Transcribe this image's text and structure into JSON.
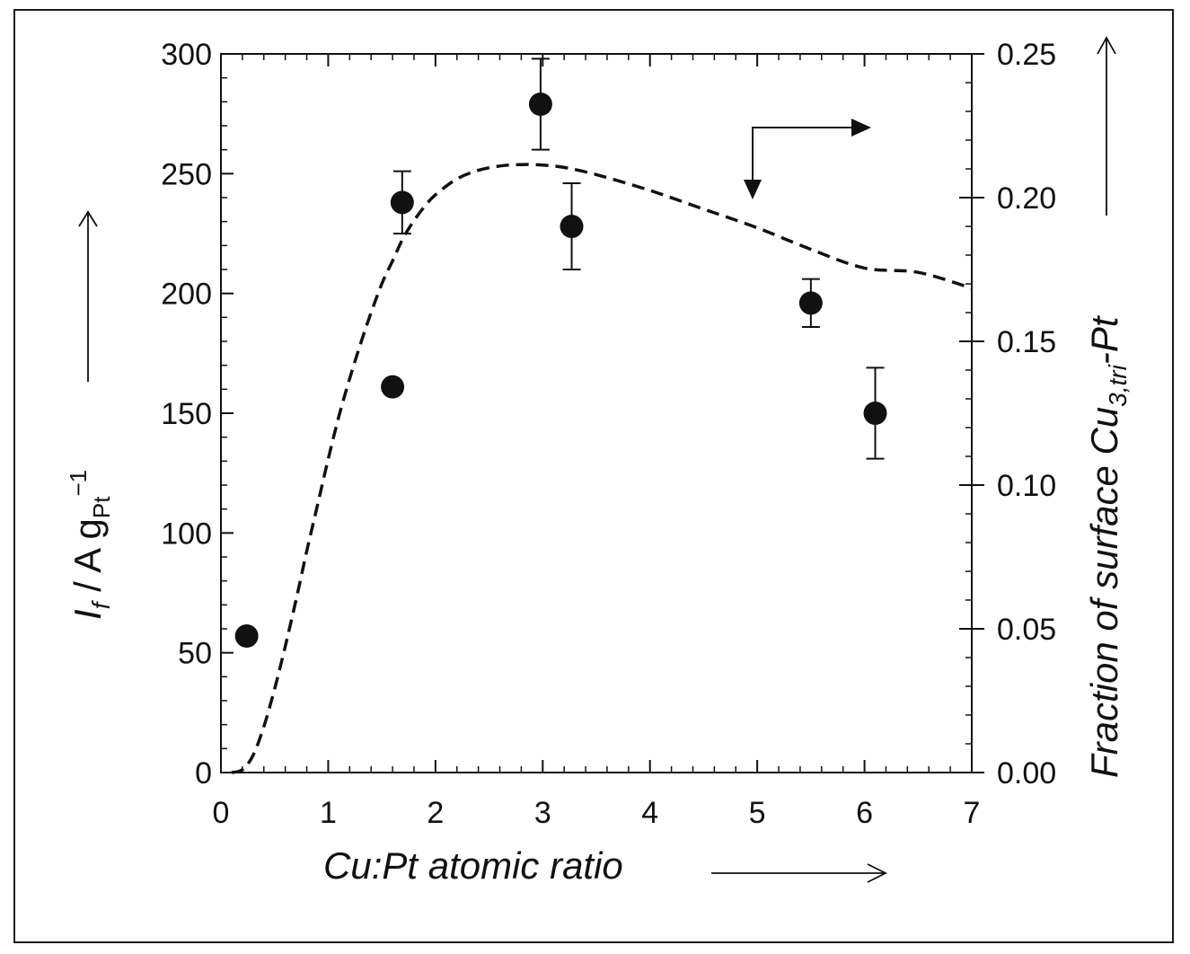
{
  "chart_data": {
    "type": "scatter",
    "x_axis": {
      "label": "Cu:Pt atomic ratio",
      "range": [
        0,
        7
      ],
      "ticks": [
        "0",
        "1",
        "2",
        "3",
        "4",
        "5",
        "6",
        "7"
      ]
    },
    "y_left_axis": {
      "label_main": "I",
      "label_sub_f": "f",
      "label_rest": " / A g",
      "label_sub_pt": "Pt",
      "label_sup": "−1",
      "range": [
        0,
        300
      ],
      "ticks": [
        "0",
        "50",
        "100",
        "150",
        "200",
        "250",
        "300"
      ]
    },
    "y_right_axis": {
      "label_prefix": "Fraction of surface Cu",
      "label_sub": "3,tri",
      "label_suffix": "-Pt",
      "range": [
        0,
        0.25
      ],
      "ticks": [
        "0.00",
        "0.05",
        "0.10",
        "0.15",
        "0.20",
        "0.25"
      ]
    },
    "series": [
      {
        "type": "scatter",
        "axis": "left",
        "points": [
          {
            "x": 0.24,
            "y": 57,
            "err": null
          },
          {
            "x": 1.6,
            "y": 161,
            "err": null
          },
          {
            "x": 1.69,
            "y": 238,
            "err": 13
          },
          {
            "x": 2.98,
            "y": 279,
            "err": 19
          },
          {
            "x": 3.27,
            "y": 228,
            "err": 18
          },
          {
            "x": 5.5,
            "y": 196,
            "err": 10
          },
          {
            "x": 6.1,
            "y": 150,
            "err": 19
          }
        ]
      },
      {
        "type": "line",
        "style": "dashed",
        "axis": "right",
        "points": [
          [
            0.1,
            0.0
          ],
          [
            0.2,
            0.001
          ],
          [
            0.3,
            0.006
          ],
          [
            0.4,
            0.016
          ],
          [
            0.5,
            0.029
          ],
          [
            0.6,
            0.044
          ],
          [
            0.7,
            0.06
          ],
          [
            0.8,
            0.077
          ],
          [
            0.9,
            0.093
          ],
          [
            1.0,
            0.109
          ],
          [
            1.1,
            0.124
          ],
          [
            1.2,
            0.137
          ],
          [
            1.3,
            0.149
          ],
          [
            1.4,
            0.16
          ],
          [
            1.5,
            0.17
          ],
          [
            1.6,
            0.178
          ],
          [
            1.7,
            0.186
          ],
          [
            1.8,
            0.192
          ],
          [
            1.9,
            0.197
          ],
          [
            2.0,
            0.201
          ],
          [
            2.2,
            0.2065
          ],
          [
            2.4,
            0.2095
          ],
          [
            2.6,
            0.211
          ],
          [
            2.8,
            0.2115
          ],
          [
            3.0,
            0.2113
          ],
          [
            3.2,
            0.2105
          ],
          [
            3.5,
            0.208
          ],
          [
            4.0,
            0.2025
          ],
          [
            4.5,
            0.196
          ],
          [
            5.0,
            0.1895
          ],
          [
            5.5,
            0.182
          ],
          [
            6.0,
            0.1755
          ],
          [
            6.5,
            0.174
          ],
          [
            7.0,
            0.1685
          ]
        ]
      }
    ],
    "colors": {
      "ink": "#111111"
    },
    "grid": false
  }
}
